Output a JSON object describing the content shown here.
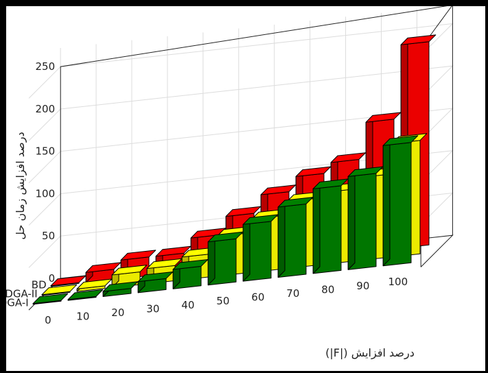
{
  "chart_data": {
    "type": "bar",
    "view": "3d-grouped",
    "xlabel": "درصد افزایش (|F|)",
    "ylabel": "درصد افزایش زمان حل",
    "categories": [
      "0",
      "10",
      "20",
      "30",
      "40",
      "50",
      "60",
      "70",
      "80",
      "90",
      "100"
    ],
    "zlim": [
      0,
      250
    ],
    "zticks": [
      0,
      50,
      100,
      150,
      200,
      250
    ],
    "grid": true,
    "series": [
      {
        "name": "BD",
        "color": "#ff0000",
        "values": [
          0,
          12,
          22,
          22,
          39,
          60,
          81,
          98,
          110,
          153,
          240
        ]
      },
      {
        "name": "HBDGA-II",
        "color": "#ffff00",
        "values": [
          0,
          3,
          15,
          18,
          27,
          47,
          63,
          79,
          85,
          98,
          134
        ]
      },
      {
        "name": "HBDGA-I",
        "color": "#008000",
        "values": [
          0,
          1,
          6,
          13,
          23,
          51,
          67,
          83,
          100,
          110,
          142
        ]
      }
    ]
  }
}
